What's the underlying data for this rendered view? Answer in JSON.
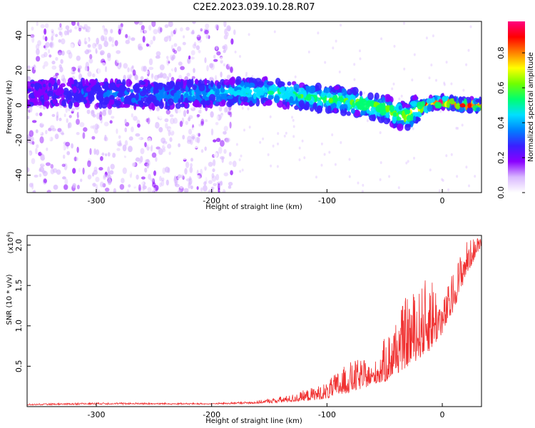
{
  "figure": {
    "title": "C2E2.2023.039.10.28.R07"
  },
  "chart_data": [
    {
      "type": "heatmap",
      "name": "spectrogram",
      "xlabel": "Height of straight line (km)",
      "ylabel": "Frequency (Hz)",
      "xlim": [
        -360,
        34
      ],
      "ylim": [
        -50,
        48
      ],
      "xticks": [
        -300,
        -200,
        -100,
        0
      ],
      "yticks": [
        -40,
        -20,
        0,
        20,
        40
      ],
      "colorbar": {
        "label": "Normalized spectral amplitude",
        "range": [
          0,
          0.98
        ],
        "ticks": [
          "0.0",
          "0.2",
          "0.4",
          "0.6",
          "0.8"
        ],
        "colormap": [
          "#ffffff",
          "#d9b8ff",
          "#8a00ff",
          "#3a20ff",
          "#0080ff",
          "#00e0ff",
          "#00ff70",
          "#70ff00",
          "#ffff00",
          "#ff8000",
          "#ff0000",
          "#ff0080"
        ]
      },
      "ridge": {
        "x": [
          -360,
          -300,
          -250,
          -200,
          -150,
          -120,
          -90,
          -70,
          -50,
          -40,
          -30,
          -25,
          -20,
          -10,
          0,
          10,
          20,
          34
        ],
        "y": [
          7,
          7,
          6,
          7,
          8,
          5,
          3,
          1,
          -2,
          -5,
          -7,
          -3,
          -2,
          1,
          2,
          1,
          0,
          0
        ]
      },
      "noise_field_x_range": [
        -360,
        -180
      ],
      "grid": false
    },
    {
      "type": "line",
      "name": "snr",
      "xlabel": "Height of straight line (km)",
      "ylabel": "SNR (10 * v/v)",
      "ylabel_multiplier": "(x10",
      "ylabel_multiplier_exp": "4",
      "ylabel_multiplier_close": ")",
      "xlim": [
        -360,
        34
      ],
      "ylim": [
        0,
        2.12
      ],
      "xticks": [
        -300,
        -200,
        -100,
        0
      ],
      "yticks": [
        "0.5",
        "1.0",
        "1.5",
        "2.0"
      ],
      "color": "#f03030",
      "envelope": {
        "x": [
          -360,
          -300,
          -200,
          -160,
          -130,
          -110,
          -100,
          -90,
          -80,
          -70,
          -60,
          -50,
          -40,
          -30,
          -20,
          -10,
          0,
          10,
          20,
          34
        ],
        "baseline": [
          0.02,
          0.03,
          0.03,
          0.04,
          0.06,
          0.08,
          0.1,
          0.14,
          0.18,
          0.22,
          0.28,
          0.3,
          0.4,
          0.5,
          0.6,
          0.7,
          0.9,
          1.2,
          1.6,
          2.0
        ],
        "peak": [
          0.03,
          0.05,
          0.04,
          0.07,
          0.15,
          0.25,
          0.3,
          0.45,
          0.55,
          0.6,
          0.5,
          0.85,
          1.1,
          1.4,
          1.45,
          1.7,
          1.3,
          1.7,
          2.05,
          2.12
        ]
      },
      "grid": false
    }
  ]
}
